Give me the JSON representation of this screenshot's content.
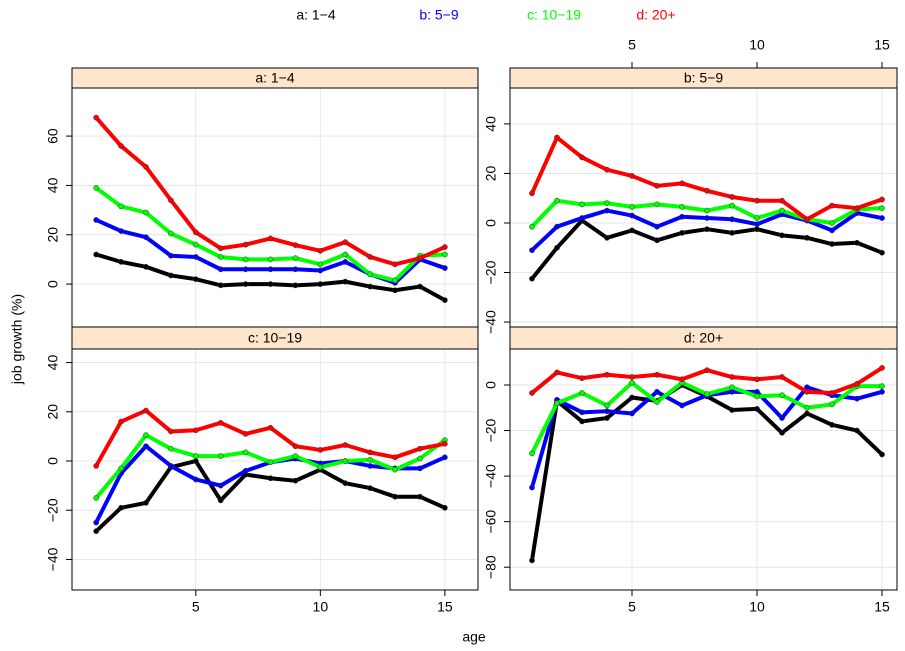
{
  "xlabel": "age",
  "ylabel": "job growth (%)",
  "chart_data": [
    {
      "type": "line",
      "title": "a: 1−4",
      "grid": true,
      "x": [
        1,
        2,
        3,
        4,
        5,
        6,
        7,
        8,
        9,
        10,
        11,
        12,
        13,
        14,
        15
      ],
      "xlim": [
        0.03,
        16.33
      ],
      "xticks": [
        5,
        10,
        15
      ],
      "ylim": [
        -17.4,
        79.5
      ],
      "yticks": [
        0,
        20,
        40,
        60
      ],
      "series": [
        {
          "name": "a: 1−4",
          "color": "#000000",
          "values": [
            12,
            9,
            7,
            3.5,
            2,
            -0.5,
            0,
            0,
            -0.5,
            0,
            1,
            -1,
            -2.5,
            -1,
            -6.5
          ]
        },
        {
          "name": "b: 5−9",
          "color": "#0000ff",
          "values": [
            26,
            21.5,
            19,
            11.5,
            11,
            6,
            6,
            6,
            6,
            5.5,
            9,
            4,
            0.5,
            10,
            6.5
          ]
        },
        {
          "name": "c: 10−19",
          "color": "#00ff00",
          "values": [
            39,
            31.5,
            29,
            20.5,
            16,
            11,
            10,
            10,
            10.5,
            8,
            12,
            4,
            1.5,
            11.5,
            12
          ]
        },
        {
          "name": "d: 20+",
          "color": "#ff0000",
          "values": [
            67.5,
            56,
            47.5,
            34,
            21,
            14.5,
            16,
            18.5,
            15.8,
            13.5,
            17,
            11,
            8,
            10.5,
            15
          ]
        }
      ]
    },
    {
      "type": "line",
      "title": "b: 5−9",
      "grid": true,
      "x": [
        1,
        2,
        3,
        4,
        5,
        6,
        7,
        8,
        9,
        10,
        11,
        12,
        13,
        14,
        15
      ],
      "xlim": [
        0.12,
        15.6
      ],
      "xticks": [
        5,
        10,
        15
      ],
      "ylim": [
        -42,
        54.5
      ],
      "yticks": [
        {
          "value": -40,
          "label": "−40"
        },
        {
          "value": -20,
          "label": "−20"
        },
        0,
        20,
        40
      ],
      "series": [
        {
          "name": "a: 1−4",
          "color": "#000000",
          "values": [
            -22.5,
            -10,
            1,
            -6,
            -3,
            -7,
            -4,
            -2.5,
            -4,
            -2.5,
            -5,
            -6,
            -8.5,
            -8,
            -12
          ]
        },
        {
          "name": "b: 5−9",
          "color": "#0000ff",
          "values": [
            -11,
            -1.5,
            2,
            5,
            3,
            -1.5,
            2.5,
            2,
            1.5,
            -0.5,
            3.5,
            1,
            -3,
            4,
            2
          ]
        },
        {
          "name": "c: 10−19",
          "color": "#00ff00",
          "values": [
            -1.5,
            9,
            7.5,
            8,
            6.5,
            7.5,
            6.5,
            5,
            7,
            2,
            5,
            1.5,
            0,
            5.5,
            6
          ]
        },
        {
          "name": "d: 20+",
          "color": "#ff0000",
          "values": [
            12,
            34.5,
            26.5,
            21.5,
            19,
            15,
            16,
            13,
            10.5,
            9,
            9,
            1.5,
            7,
            6,
            9.5
          ]
        }
      ]
    },
    {
      "type": "line",
      "title": "c: 10−19",
      "grid": true,
      "x": [
        1,
        2,
        3,
        4,
        5,
        6,
        7,
        8,
        9,
        10,
        11,
        12,
        13,
        14,
        15
      ],
      "xlim": [
        0.03,
        16.33
      ],
      "xticks": [
        5,
        10,
        15
      ],
      "ylim": [
        -52.4,
        45.5
      ],
      "yticks": [
        {
          "value": -40,
          "label": "−40"
        },
        {
          "value": -20,
          "label": "−20"
        },
        0,
        20,
        40
      ],
      "series": [
        {
          "name": "a: 1−4",
          "color": "#000000",
          "values": [
            -28.5,
            -19,
            -17,
            -2.5,
            0,
            -16,
            -5.5,
            -7,
            -8,
            -3.5,
            -9,
            -11,
            -14.5,
            -14.5,
            -19
          ]
        },
        {
          "name": "b: 5−9",
          "color": "#0000ff",
          "values": [
            -25,
            -5,
            6,
            -2,
            -7.5,
            -10,
            -4,
            -0.5,
            1,
            -1,
            0,
            -2,
            -3,
            -3,
            1.5
          ]
        },
        {
          "name": "c: 10−19",
          "color": "#00ff00",
          "values": [
            -15,
            -3,
            10.5,
            5,
            2,
            2,
            3.5,
            -0.5,
            2,
            -2.5,
            0,
            0.5,
            -3.5,
            1,
            8.5
          ]
        },
        {
          "name": "d: 20+",
          "color": "#ff0000",
          "values": [
            -2,
            16,
            20.5,
            12,
            12.5,
            15.5,
            11,
            13.5,
            6,
            4.5,
            6.5,
            3.5,
            1.5,
            5,
            7
          ]
        }
      ]
    },
    {
      "type": "line",
      "title": "d: 20+",
      "grid": true,
      "x": [
        1,
        2,
        3,
        4,
        5,
        6,
        7,
        8,
        9,
        10,
        11,
        12,
        13,
        14,
        15
      ],
      "xlim": [
        0.12,
        15.6
      ],
      "xticks": [
        5,
        10,
        15
      ],
      "ylim": [
        -90,
        15.8
      ],
      "yticks": [
        {
          "value": -80,
          "label": "−80"
        },
        {
          "value": -60,
          "label": "−60"
        },
        {
          "value": -40,
          "label": "−40"
        },
        {
          "value": -20,
          "label": "−20"
        },
        0
      ],
      "series": [
        {
          "name": "a: 1−4",
          "color": "#000000",
          "values": [
            -77,
            -7,
            -16,
            -14.5,
            -5.5,
            -7,
            0,
            -5,
            -11,
            -10.5,
            -21,
            -12.5,
            -17.5,
            -20,
            -30.5
          ]
        },
        {
          "name": "b: 5−9",
          "color": "#0000ff",
          "values": [
            -45,
            -6.5,
            -12,
            -11.5,
            -12.5,
            -3,
            -9,
            -4.5,
            -3,
            -3,
            -14.5,
            -1,
            -4.5,
            -6,
            -3
          ]
        },
        {
          "name": "c: 10−19",
          "color": "#00ff00",
          "values": [
            -30,
            -8,
            -3.5,
            -9,
            1,
            -7.5,
            1,
            -4,
            -1,
            -5,
            -4.5,
            -10,
            -8.5,
            -0.5,
            -0.5
          ]
        },
        {
          "name": "d: 20+",
          "color": "#ff0000",
          "values": [
            -3.5,
            5.5,
            3,
            4.5,
            3.5,
            4.5,
            2.5,
            6.5,
            3.5,
            2.5,
            3.5,
            -3,
            -3.5,
            0.5,
            7.5
          ]
        }
      ]
    }
  ]
}
